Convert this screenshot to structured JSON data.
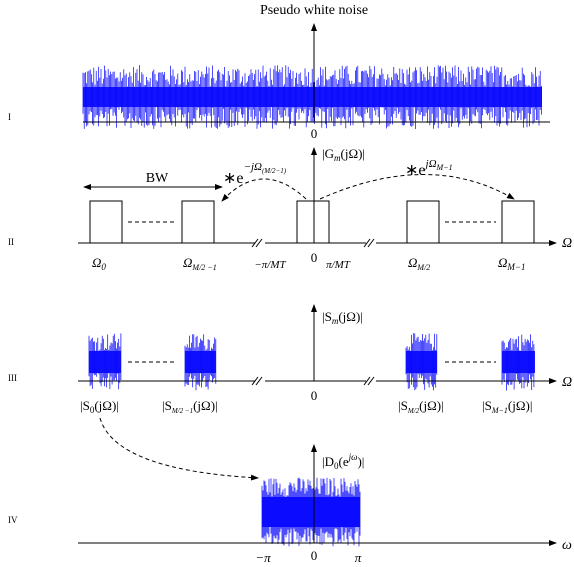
{
  "row_labels": [
    "I",
    "II",
    "III",
    "IV"
  ],
  "row1": {
    "title": "Pseudo white noise",
    "origin": "0"
  },
  "row2": {
    "magnitude_label": "|G",
    "magnitude_sub": "m",
    "magnitude_arg": "(jΩ)|",
    "bandwidth": "BW",
    "left_mod": "∗e",
    "left_mod_exp": "−jΩ",
    "left_mod_exp_sub": "(M/2−1)",
    "right_mod": "∗e",
    "right_mod_exp": "jΩ",
    "right_mod_exp_sub": "M−1",
    "axis": "Ω",
    "origin": "0",
    "ticks": [
      {
        "name": "omega-0",
        "text": "Ω",
        "sub": "0"
      },
      {
        "name": "omega-m2-minus-1",
        "text": "Ω",
        "sub": "M/2 −1"
      },
      {
        "name": "neg-pi-over-mt",
        "text": "−π/MT"
      },
      {
        "name": "pi-over-mt",
        "text": "π/MT"
      },
      {
        "name": "omega-m2",
        "text": "Ω",
        "sub": "M/2"
      },
      {
        "name": "omega-m-minus-1",
        "text": "Ω",
        "sub": "M−1"
      }
    ]
  },
  "row3": {
    "magnitude_label": "|S",
    "magnitude_sub": "m",
    "magnitude_arg": "(jΩ)|",
    "axis": "Ω",
    "origin": "0",
    "band_labels": [
      {
        "name": "s0",
        "text": "|S",
        "sub": "0",
        "arg": "(jΩ)|"
      },
      {
        "name": "s-m2-minus-1",
        "text": "|S",
        "sub": "M/2 −1",
        "arg": "(jΩ)|"
      },
      {
        "name": "s-m2",
        "text": "|S",
        "sub": "M/2",
        "arg": "(jΩ)|"
      },
      {
        "name": "s-m-minus-1",
        "text": "|S",
        "sub": "M−1",
        "arg": "(jΩ)|"
      }
    ]
  },
  "row4": {
    "magnitude_label": "|D",
    "magnitude_sub": "0",
    "magnitude_arg": "(e",
    "magnitude_arg_sup": "jω",
    "magnitude_close": ")|",
    "axis": "ω",
    "origin": "0",
    "neg_pi": "−π",
    "pi": "π"
  },
  "colors": {
    "noise": "#0000ff",
    "line": "#000000"
  }
}
